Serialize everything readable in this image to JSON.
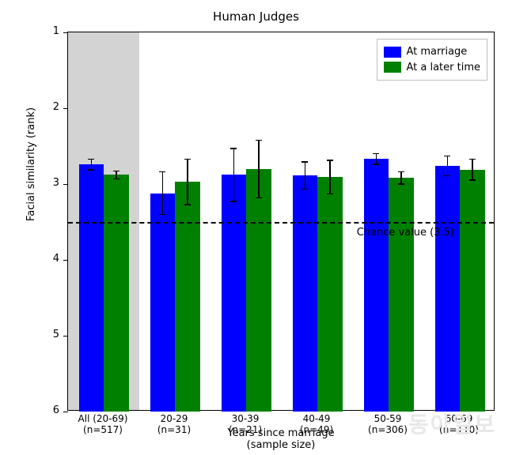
{
  "chart": {
    "type": "bar",
    "title": "Human Judges",
    "title_fontsize": 15,
    "background_color": "#ffffff",
    "shade_region_color": "#d3d3d3",
    "shade_region_xspan": [
      -0.5,
      0.5
    ],
    "ylabel": "Facial similarity (rank)",
    "xlabel_line1": "Years since marriage",
    "xlabel_line2": "(sample size)",
    "label_fontsize": 13,
    "tick_fontsize": 12,
    "ylim": [
      6,
      1
    ],
    "yticks": [
      1,
      2,
      3,
      4,
      5,
      6
    ],
    "categories": [
      {
        "line1": "All (20-69)",
        "line2": "(n=517)"
      },
      {
        "line1": "20-29",
        "line2": "(n=31)"
      },
      {
        "line1": "30-39",
        "line2": "(n=21)"
      },
      {
        "line1": "40-49",
        "line2": "(n=49)"
      },
      {
        "line1": "50-59",
        "line2": "(n=306)"
      },
      {
        "line1": "60-69",
        "line2": "(n=110)"
      }
    ],
    "series": [
      {
        "label": "At marriage",
        "color": "#0000ff",
        "values": [
          2.74,
          3.12,
          2.88,
          2.89,
          2.67,
          2.76
        ],
        "err_low": [
          0.07,
          0.28,
          0.35,
          0.18,
          0.07,
          0.13
        ],
        "err_high": [
          0.07,
          0.28,
          0.35,
          0.18,
          0.07,
          0.13
        ]
      },
      {
        "label": "At a later time",
        "color": "#008000",
        "values": [
          2.88,
          2.97,
          2.8,
          2.91,
          2.92,
          2.81
        ],
        "err_low": [
          0.05,
          0.3,
          0.38,
          0.22,
          0.08,
          0.14
        ],
        "err_high": [
          0.05,
          0.3,
          0.38,
          0.22,
          0.08,
          0.14
        ]
      }
    ],
    "bar_width": 0.35,
    "errorbar_color": "#000000",
    "errorbar_capwidth": 8,
    "chance_line_y": 3.5,
    "chance_label": "Chance value (3.5)",
    "legend": {
      "position": "top-right",
      "border_color": "#bfbfbf"
    },
    "watermark": "동아일보"
  }
}
